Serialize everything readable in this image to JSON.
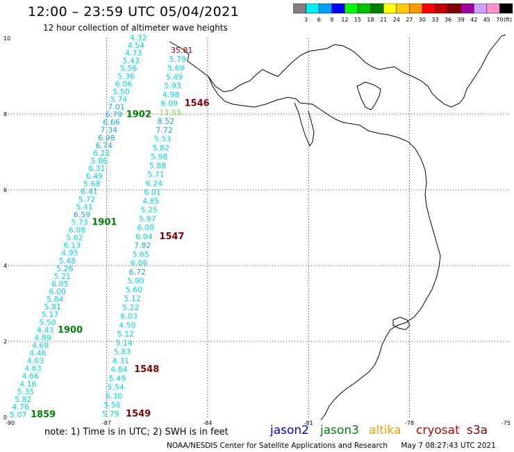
{
  "title": "12:00 – 23:59 UTC 05/04/2021",
  "subtitle": "12 hour collection of altimeter wave heights",
  "color_scale": {
    "labels": [
      "3",
      "6",
      "9",
      "12",
      "15",
      "18",
      "21",
      "24",
      "27",
      "30",
      "33",
      "36",
      "39",
      "42",
      "45",
      "70"
    ],
    "unit": "(ft)",
    "colors": [
      "#808080",
      "#00f0f0",
      "#00a0ff",
      "#0000ff",
      "#00ff00",
      "#00c000",
      "#008000",
      "#ffff00",
      "#ffcc00",
      "#ff9900",
      "#ff0000",
      "#c00000",
      "#800000",
      "#a000a0",
      "#d0a0ff",
      "#ff90d0",
      "#000000"
    ]
  },
  "axes": {
    "lon_labels": [
      "-90",
      "-87",
      "-84",
      "-81",
      "-78",
      "-75"
    ],
    "lat_labels": [
      "0",
      "2",
      "4",
      "6",
      "8",
      "10"
    ]
  },
  "passes": {
    "west": {
      "values": [
        "5.07",
        "4.76",
        "5.82",
        "5.35",
        "4.16",
        "4.66",
        "4.63",
        "4.03",
        "4.46",
        "4.69",
        "4.89",
        "4.43",
        "5.50",
        "5.17",
        "5.81",
        "5.84",
        "6.00",
        "6.05",
        "5.21",
        "5.26",
        "5.48",
        "4.95",
        "6.13",
        "5.62",
        "6.08",
        "5.73",
        "6.59",
        "5.41",
        "5.72",
        "6.41",
        "5.68",
        "6.49",
        "6.31",
        "5.86",
        "6.22",
        "6.74",
        "6.98",
        "7.34",
        "6.66",
        "6.79",
        "7.01",
        "5.74",
        "5.50",
        "6.06",
        "5.36",
        "5.56",
        "5.43",
        "4.73",
        "4.54",
        "4.32"
      ],
      "times": [
        {
          "label": "1859",
          "index": 0
        },
        {
          "label": "1900",
          "index": 11
        },
        {
          "label": "1901",
          "index": 25
        },
        {
          "label": "1902",
          "index": 39
        }
      ]
    },
    "east": {
      "values": [
        "5.79",
        "5.56",
        "5.30",
        "5.54",
        "5.49",
        "4.84",
        "4.31",
        "5.83",
        "5.14",
        "5.12",
        "4.50",
        "6.03",
        "5.22",
        "5.12",
        "5.60",
        "5.90",
        "6.72",
        "6.06",
        "5.65",
        "7.82",
        "6.04",
        "6.08",
        "5.97",
        "5.25",
        "4.85",
        "6.01",
        "6.24",
        "5.71",
        "5.88",
        "5.98",
        "5.82",
        "5.53",
        "7.72",
        "8.52",
        "13.03",
        "6.09",
        "4.98",
        "5.93",
        "5.49",
        "5.69",
        "5.79",
        "35.81"
      ],
      "times": [
        {
          "label": "1549",
          "index": 0
        },
        {
          "label": "1548",
          "index": 5
        },
        {
          "label": "1547",
          "index": 20
        },
        {
          "label": "1546",
          "index": 35
        }
      ]
    }
  },
  "note": "note:  1) Time is in UTC;  2) SWH is in feet",
  "legend": [
    {
      "name": "jason2",
      "color": "#0000e0"
    },
    {
      "name": "jason3",
      "color": "#008000"
    },
    {
      "name": "altika",
      "color": "#ff9900"
    },
    {
      "name": "cryosat",
      "color": "#c00000"
    },
    {
      "name": "s3a",
      "color": "#800000"
    }
  ],
  "footer": {
    "credit": "NOAA/NESDIS Center for Satellite Applications and Research",
    "timestamp": "May  7 08:27:43 UTC 2021"
  }
}
